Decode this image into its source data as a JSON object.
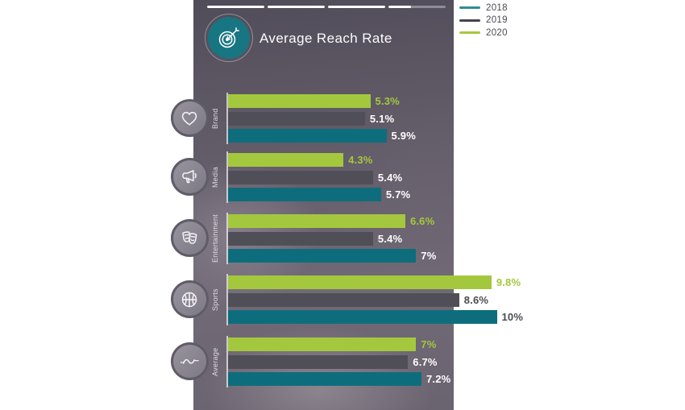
{
  "header": {
    "title": "Average Reach Rate",
    "icon": "target-icon"
  },
  "story_progress": {
    "segments": 4,
    "fills": [
      1,
      1,
      1,
      0.4
    ]
  },
  "legend": [
    {
      "label": "2018",
      "color": "#2f8b98"
    },
    {
      "label": "2019",
      "color": "#45444c"
    },
    {
      "label": "2020",
      "color": "#a5c83e"
    }
  ],
  "colors": {
    "green": "#a4c83d",
    "gray_bar": "#504f58",
    "teal_bar": "#0e6d7d",
    "value_text_light": "#ffffff",
    "value_text_dark": "#4a4a52"
  },
  "chart_data": {
    "type": "bar",
    "orientation": "horizontal",
    "unit": "percent",
    "title": "Average Reach Rate",
    "categories": [
      "Brand",
      "Media",
      "Entertainment",
      "Sports",
      "Average"
    ],
    "category_icons": [
      "heart-icon",
      "megaphone-icon",
      "theater-masks-icon",
      "basketball-icon",
      "wave-icon"
    ],
    "series": [
      {
        "name": "2020",
        "color": "#a4c83d",
        "values": [
          5.3,
          4.3,
          6.6,
          9.8,
          7
        ],
        "labels": [
          "5.3%",
          "4.3%",
          "6.6%",
          "9.8%",
          "7%"
        ]
      },
      {
        "name": "2019",
        "color": "#504f58",
        "values": [
          5.1,
          5.4,
          5.4,
          8.6,
          6.7
        ],
        "labels": [
          "5.1%",
          "5.4%",
          "5.4%",
          "8.6%",
          "6.7%"
        ]
      },
      {
        "name": "2018",
        "color": "#0e6d7d",
        "values": [
          5.9,
          5.7,
          7,
          10,
          7.2
        ],
        "labels": [
          "5.9%",
          "5.7%",
          "7%",
          "10%",
          "7.2%"
        ]
      }
    ],
    "xlim": [
      0,
      10
    ],
    "legend_position": "top-right",
    "value_labels": true,
    "bar_order_top_to_bottom": [
      "2020",
      "2019",
      "2018"
    ]
  }
}
